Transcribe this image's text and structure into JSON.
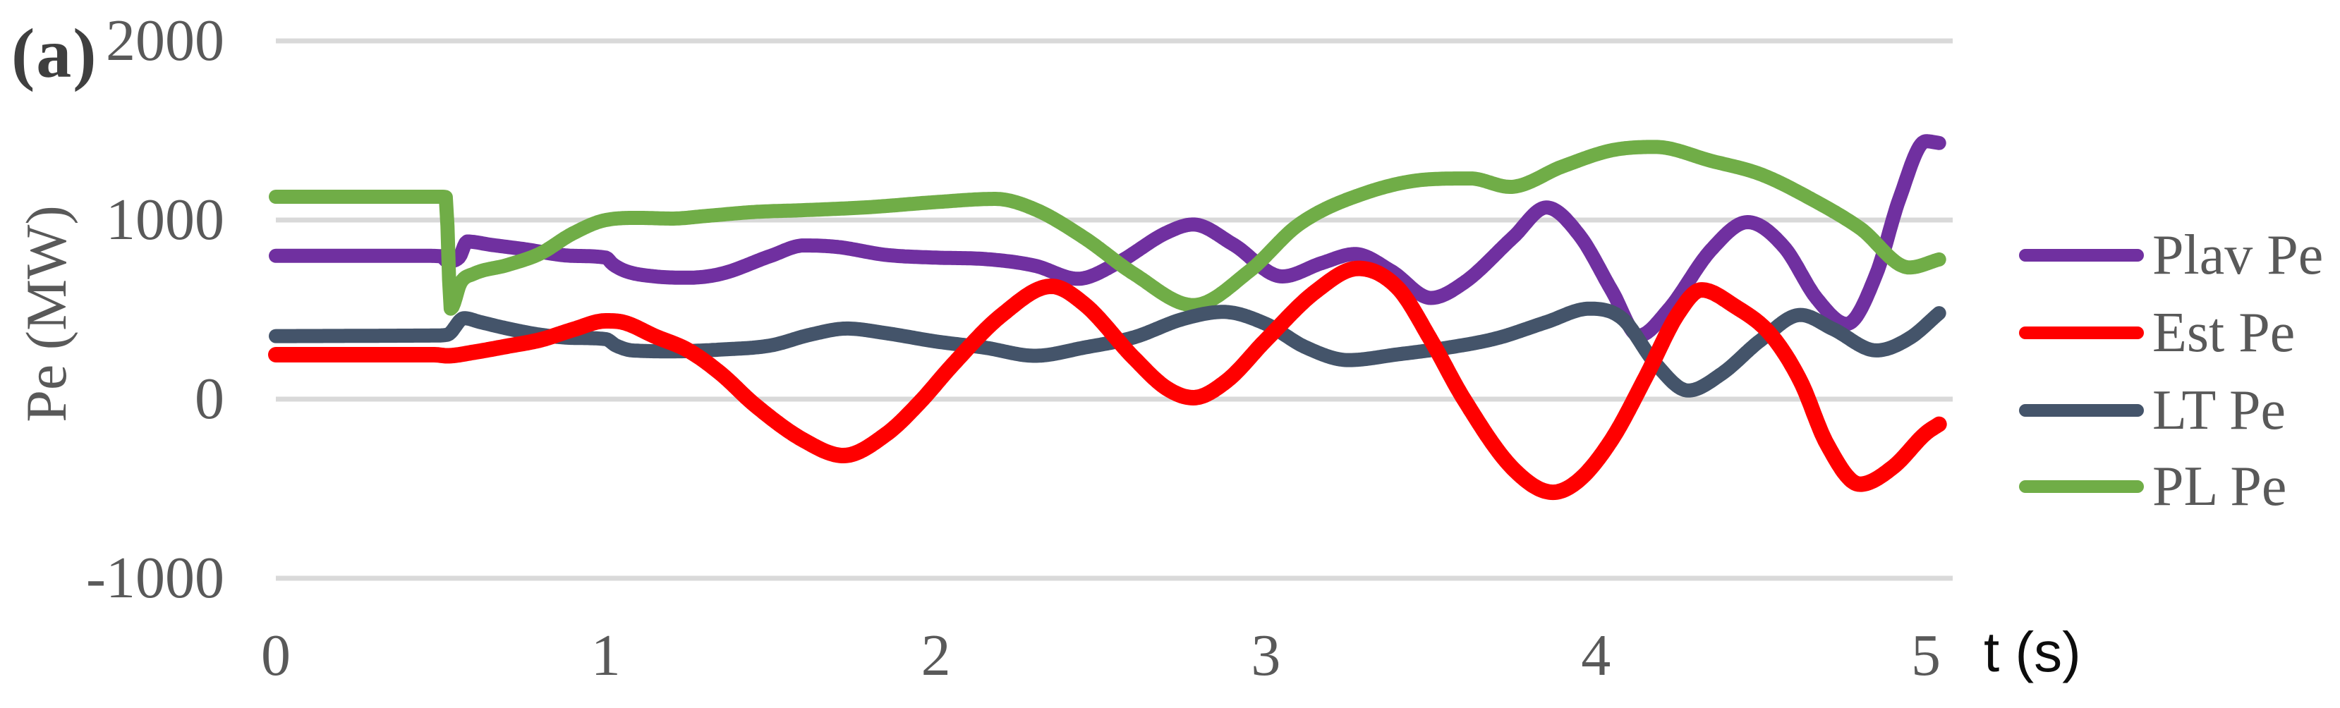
{
  "panel_label": "(a)",
  "chart_data": {
    "type": "line",
    "title": "",
    "xlabel": "t (s)",
    "ylabel": "Pe (MW)",
    "xlim": [
      0,
      5
    ],
    "ylim": [
      -1000,
      2000
    ],
    "x_ticks": [
      "0",
      "1",
      "2",
      "3",
      "4",
      "5"
    ],
    "x_tick_values": [
      0,
      1,
      2,
      3,
      4,
      5
    ],
    "y_ticks": [
      "2000",
      "1000",
      "0",
      "-1000"
    ],
    "y_tick_values": [
      2000,
      1000,
      0,
      -1000
    ],
    "grid": "horizontal-only",
    "gridline_color": "#d9d9d9",
    "text_color": "#595959",
    "legend_position": "right",
    "legend_entries": [
      "Plav Pe",
      "Est Pe",
      "LT Pe",
      "PL Pe"
    ],
    "series": [
      {
        "name": "Plav Pe",
        "color": "#7030a0",
        "stroke_width": 20,
        "points": [
          [
            0,
            800
          ],
          [
            0.45,
            800
          ],
          [
            0.5,
            798
          ],
          [
            0.52,
            770
          ],
          [
            0.555,
            790
          ],
          [
            0.58,
            880
          ],
          [
            0.65,
            862
          ],
          [
            0.75,
            838
          ],
          [
            0.9,
            800
          ],
          [
            1.0,
            790
          ],
          [
            1.02,
            755
          ],
          [
            1.06,
            715
          ],
          [
            1.15,
            685
          ],
          [
            1.25,
            678
          ],
          [
            1.35,
            700
          ],
          [
            1.5,
            800
          ],
          [
            1.6,
            858
          ],
          [
            1.7,
            850
          ],
          [
            1.85,
            805
          ],
          [
            2.0,
            790
          ],
          [
            2.15,
            782
          ],
          [
            2.3,
            745
          ],
          [
            2.43,
            672
          ],
          [
            2.55,
            760
          ],
          [
            2.7,
            930
          ],
          [
            2.78,
            975
          ],
          [
            2.9,
            865
          ],
          [
            3.05,
            685
          ],
          [
            3.17,
            760
          ],
          [
            3.27,
            810
          ],
          [
            3.38,
            715
          ],
          [
            3.5,
            565
          ],
          [
            3.6,
            650
          ],
          [
            3.75,
            905
          ],
          [
            3.85,
            1070
          ],
          [
            3.95,
            915
          ],
          [
            4.05,
            600
          ],
          [
            4.13,
            355
          ],
          [
            4.22,
            500
          ],
          [
            4.35,
            835
          ],
          [
            4.46,
            988
          ],
          [
            4.57,
            850
          ],
          [
            4.67,
            560
          ],
          [
            4.76,
            420
          ],
          [
            4.85,
            700
          ],
          [
            4.92,
            1120
          ],
          [
            5.0,
            1440
          ],
          [
            5.04,
            1430
          ]
        ]
      },
      {
        "name": "Est Pe",
        "color": "#ff0000",
        "stroke_width": 22,
        "points": [
          [
            0,
            248
          ],
          [
            0.48,
            248
          ],
          [
            0.52,
            242
          ],
          [
            0.6,
            262
          ],
          [
            0.7,
            295
          ],
          [
            0.8,
            330
          ],
          [
            0.9,
            388
          ],
          [
            1.0,
            437
          ],
          [
            1.05,
            430
          ],
          [
            1.15,
            350
          ],
          [
            1.25,
            272
          ],
          [
            1.35,
            140
          ],
          [
            1.45,
            -30
          ],
          [
            1.6,
            -230
          ],
          [
            1.72,
            -315
          ],
          [
            1.85,
            -195
          ],
          [
            1.95,
            -20
          ],
          [
            2.05,
            190
          ],
          [
            2.2,
            470
          ],
          [
            2.35,
            630
          ],
          [
            2.45,
            530
          ],
          [
            2.6,
            230
          ],
          [
            2.7,
            60
          ],
          [
            2.78,
            8
          ],
          [
            2.88,
            100
          ],
          [
            3.0,
            330
          ],
          [
            3.15,
            600
          ],
          [
            3.28,
            730
          ],
          [
            3.4,
            620
          ],
          [
            3.5,
            330
          ],
          [
            3.6,
            0
          ],
          [
            3.75,
            -390
          ],
          [
            3.87,
            -520
          ],
          [
            3.95,
            -450
          ],
          [
            4.05,
            -220
          ],
          [
            4.15,
            120
          ],
          [
            4.25,
            480
          ],
          [
            4.32,
            610
          ],
          [
            4.42,
            520
          ],
          [
            4.53,
            360
          ],
          [
            4.62,
            100
          ],
          [
            4.7,
            -250
          ],
          [
            4.8,
            -475
          ],
          [
            4.9,
            -380
          ],
          [
            5.0,
            -190
          ],
          [
            5.04,
            -140
          ]
        ]
      },
      {
        "name": "LT Pe",
        "color": "#44546a",
        "stroke_width": 20,
        "points": [
          [
            0,
            352
          ],
          [
            0.48,
            355
          ],
          [
            0.52,
            360
          ],
          [
            0.57,
            452
          ],
          [
            0.62,
            430
          ],
          [
            0.7,
            395
          ],
          [
            0.8,
            360
          ],
          [
            0.9,
            342
          ],
          [
            1.0,
            335
          ],
          [
            1.03,
            300
          ],
          [
            1.08,
            272
          ],
          [
            1.2,
            267
          ],
          [
            1.35,
            277
          ],
          [
            1.5,
            300
          ],
          [
            1.62,
            360
          ],
          [
            1.73,
            394
          ],
          [
            1.85,
            368
          ],
          [
            2.0,
            322
          ],
          [
            2.15,
            287
          ],
          [
            2.3,
            242
          ],
          [
            2.45,
            288
          ],
          [
            2.6,
            345
          ],
          [
            2.75,
            448
          ],
          [
            2.87,
            487
          ],
          [
            3.0,
            420
          ],
          [
            3.12,
            290
          ],
          [
            3.25,
            218
          ],
          [
            3.4,
            250
          ],
          [
            3.55,
            287
          ],
          [
            3.7,
            340
          ],
          [
            3.85,
            430
          ],
          [
            3.98,
            505
          ],
          [
            4.08,
            450
          ],
          [
            4.18,
            200
          ],
          [
            4.28,
            48
          ],
          [
            4.38,
            140
          ],
          [
            4.5,
            330
          ],
          [
            4.62,
            470
          ],
          [
            4.72,
            390
          ],
          [
            4.85,
            272
          ],
          [
            4.95,
            340
          ],
          [
            5.04,
            480
          ]
        ]
      },
      {
        "name": "PL Pe",
        "color": "#70ad47",
        "stroke_width": 20,
        "points": [
          [
            0,
            1130
          ],
          [
            0.5,
            1130
          ],
          [
            0.515,
            1128
          ],
          [
            0.53,
            505
          ],
          [
            0.56,
            650
          ],
          [
            0.6,
            700
          ],
          [
            0.7,
            748
          ],
          [
            0.8,
            812
          ],
          [
            0.9,
            925
          ],
          [
            1.0,
            1000
          ],
          [
            1.1,
            1012
          ],
          [
            1.2,
            1008
          ],
          [
            1.3,
            1022
          ],
          [
            1.45,
            1045
          ],
          [
            1.6,
            1055
          ],
          [
            1.8,
            1072
          ],
          [
            2.0,
            1100
          ],
          [
            2.18,
            1118
          ],
          [
            2.3,
            1060
          ],
          [
            2.45,
            900
          ],
          [
            2.6,
            700
          ],
          [
            2.78,
            525
          ],
          [
            2.95,
            715
          ],
          [
            3.1,
            975
          ],
          [
            3.3,
            1150
          ],
          [
            3.5,
            1228
          ],
          [
            3.62,
            1232
          ],
          [
            3.74,
            1185
          ],
          [
            3.9,
            1300
          ],
          [
            4.05,
            1390
          ],
          [
            4.18,
            1408
          ],
          [
            4.35,
            1330
          ],
          [
            4.5,
            1255
          ],
          [
            4.65,
            1120
          ],
          [
            4.8,
            955
          ],
          [
            4.95,
            735
          ],
          [
            5.04,
            780
          ]
        ]
      }
    ],
    "draw_order": [
      "Plav Pe",
      "PL Pe",
      "LT Pe",
      "Est Pe"
    ]
  }
}
